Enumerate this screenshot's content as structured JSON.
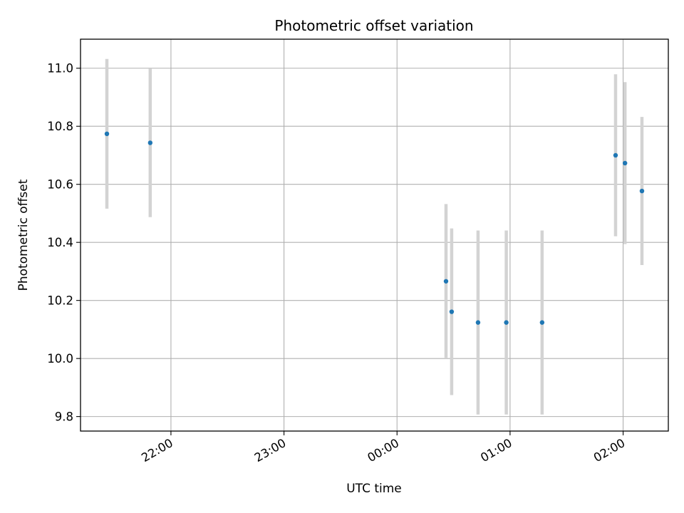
{
  "chart_data": {
    "type": "scatter",
    "title": "Photometric offset variation",
    "xlabel": "UTC time",
    "ylabel": "Photometric offset",
    "x_axis_kind": "time",
    "xlim": [
      "21:12",
      "02:24"
    ],
    "ylim": [
      9.75,
      11.1
    ],
    "grid": true,
    "point_color": "#1f77b4",
    "errorbar_color": "#d3d3d3",
    "x_ticks": [
      {
        "value": "22:00",
        "label": "22:00"
      },
      {
        "value": "23:00",
        "label": "23:00"
      },
      {
        "value": "00:00",
        "label": "00:00"
      },
      {
        "value": "01:00",
        "label": "01:00"
      },
      {
        "value": "02:00",
        "label": "02:00"
      }
    ],
    "y_ticks": [
      {
        "value": 9.8,
        "label": "9.8"
      },
      {
        "value": 10.0,
        "label": "10.0"
      },
      {
        "value": 10.2,
        "label": "10.2"
      },
      {
        "value": 10.4,
        "label": "10.4"
      },
      {
        "value": 10.6,
        "label": "10.6"
      },
      {
        "value": 10.8,
        "label": "10.8"
      },
      {
        "value": 11.0,
        "label": "11.0"
      }
    ],
    "points": [
      {
        "x": "21:26",
        "y": 10.774,
        "err": 0.258
      },
      {
        "x": "21:49",
        "y": 10.743,
        "err": 0.256
      },
      {
        "x": "00:26",
        "y": 10.266,
        "err": 0.266
      },
      {
        "x": "00:29",
        "y": 10.161,
        "err": 0.287
      },
      {
        "x": "00:43",
        "y": 10.124,
        "err": 0.317
      },
      {
        "x": "00:58",
        "y": 10.124,
        "err": 0.317
      },
      {
        "x": "01:17",
        "y": 10.124,
        "err": 0.317
      },
      {
        "x": "01:56",
        "y": 10.7,
        "err": 0.279
      },
      {
        "x": "02:01",
        "y": 10.673,
        "err": 0.279
      },
      {
        "x": "02:10",
        "y": 10.577,
        "err": 0.255
      }
    ]
  }
}
